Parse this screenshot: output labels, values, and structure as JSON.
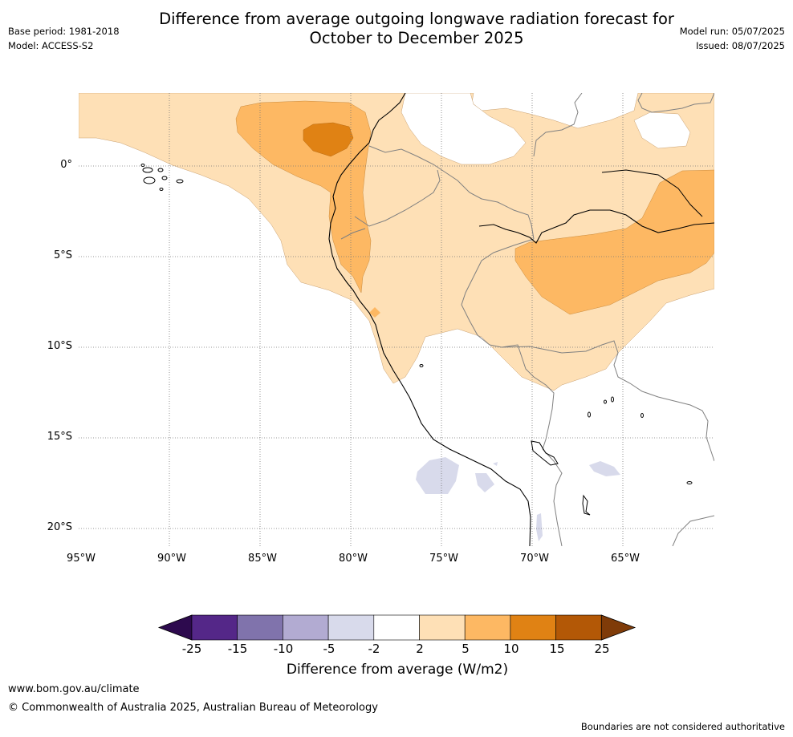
{
  "header": {
    "title": "Difference from average outgoing longwave radiation forecast for\nOctober to December 2025",
    "base_period": "Base period: 1981-2018",
    "model": "Model: ACCESS-S2",
    "model_run": "Model run: 05/07/2025",
    "issued": "Issued: 08/07/2025"
  },
  "map": {
    "lat_labels": [
      "0°",
      "5°S",
      "10°S",
      "15°S",
      "20°S"
    ],
    "lon_labels": [
      "95°W",
      "90°W",
      "85°W",
      "80°W",
      "75°W",
      "70°W",
      "65°W"
    ]
  },
  "colorbar": {
    "label": "Difference from average (W/m2)",
    "ticks": [
      "-25",
      "-15",
      "-10",
      "-5",
      "-2",
      "2",
      "5",
      "10",
      "15",
      "25"
    ],
    "colors": {
      "below": "#2d0a4e",
      "bins": [
        "#542788",
        "#8073ac",
        "#b2abd2",
        "#d8daeb",
        "#ffffff",
        "#fee0b6",
        "#fdb863",
        "#e08214",
        "#b35806"
      ],
      "above": "#7f3b08"
    }
  },
  "footer": {
    "site": "www.bom.gov.au/climate",
    "copyright": "© Commonwealth of Australia 2025, Australian Bureau of Meteorology",
    "disclaimer": "Boundaries are not considered authoritative"
  }
}
